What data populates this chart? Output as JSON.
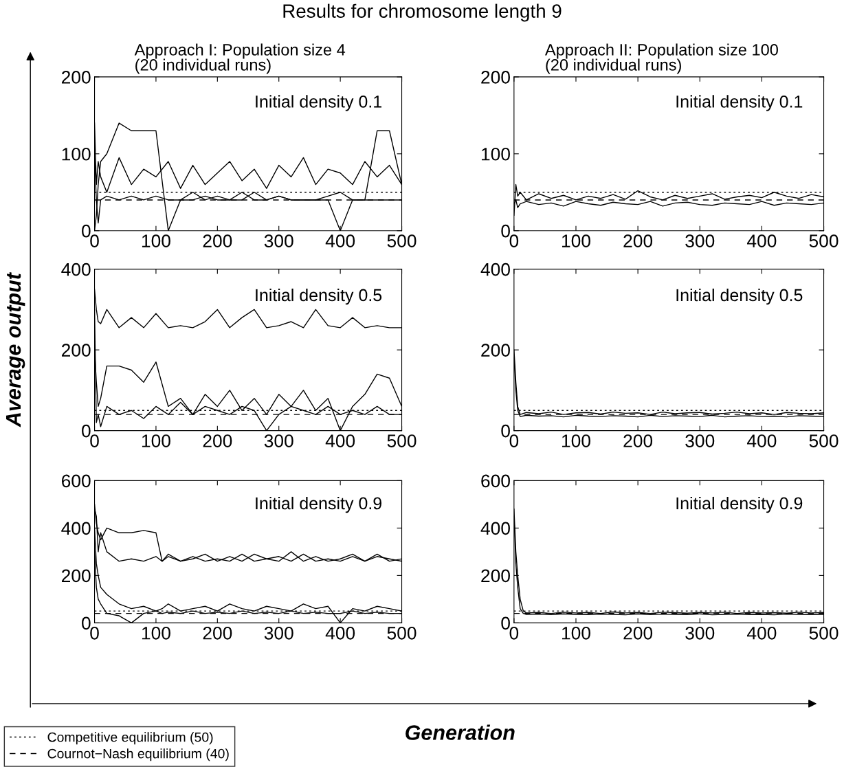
{
  "chart_data": [
    {
      "type": "line",
      "title": "Results for chromosome length 9",
      "subtitle": "Approach I: Population size 4\n(20 individual runs)",
      "ylabel": "Average output",
      "xlabel": "Generation",
      "annotations": [
        "Initial density 0.1"
      ],
      "xlim": [
        0,
        500
      ],
      "xticks": [
        0,
        100,
        200,
        300,
        400,
        500
      ],
      "ylim": [
        0,
        200
      ],
      "yticks": [
        0,
        100,
        200
      ],
      "legend": "bottom left",
      "grid": false,
      "x": [
        0,
        3,
        6,
        10,
        20,
        40,
        60,
        80,
        100,
        120,
        140,
        160,
        180,
        200,
        220,
        240,
        260,
        280,
        300,
        320,
        340,
        360,
        380,
        400,
        420,
        440,
        460,
        480,
        500
      ],
      "series": [
        {
          "color": "#000000",
          "values": [
            140,
            60,
            90,
            70,
            50,
            95,
            60,
            80,
            70,
            90,
            55,
            85,
            60,
            75,
            90,
            65,
            80,
            55,
            85,
            70,
            95,
            60,
            80,
            75,
            60,
            90,
            70,
            85,
            60
          ]
        },
        {
          "color": "#000000",
          "values": [
            0,
            20,
            60,
            90,
            100,
            140,
            130,
            130,
            130,
            0,
            40,
            40,
            45,
            40,
            40,
            50,
            40,
            40,
            45,
            40,
            40,
            40,
            40,
            0,
            40,
            40,
            130,
            130,
            60
          ]
        },
        {
          "color": "#000000",
          "values": [
            100,
            40,
            10,
            40,
            45,
            40,
            45,
            40,
            45,
            40,
            40,
            50,
            40,
            45,
            40,
            40,
            50,
            40,
            45,
            40,
            40,
            40,
            45,
            50,
            40,
            40,
            40,
            40,
            40
          ]
        }
      ],
      "ref_lines": [
        {
          "axis": "y",
          "value": 50,
          "label": "Competitive equilibrium (50)",
          "line_style": "dotted",
          "color": "#000000"
        },
        {
          "axis": "y",
          "value": 40,
          "label": "Cournot−Nash equilibrium (40)",
          "line_style": "dashed",
          "color": "#000000"
        }
      ]
    },
    {
      "type": "line",
      "subtitle": "Approach II: Population size 100\n(20 individual runs)",
      "annotations": [
        "Initial density 0.1"
      ],
      "xlim": [
        0,
        500
      ],
      "xticks": [
        0,
        100,
        200,
        300,
        400,
        500
      ],
      "ylim": [
        0,
        200
      ],
      "yticks": [
        0,
        100,
        200
      ],
      "x": [
        0,
        3,
        6,
        10,
        20,
        40,
        60,
        80,
        100,
        120,
        140,
        160,
        180,
        200,
        220,
        240,
        260,
        280,
        300,
        320,
        340,
        360,
        380,
        400,
        420,
        440,
        460,
        480,
        500
      ],
      "series": [
        {
          "color": "#000000",
          "values": [
            20,
            60,
            45,
            50,
            40,
            48,
            42,
            46,
            40,
            45,
            42,
            47,
            41,
            52,
            44,
            40,
            46,
            42,
            45,
            48,
            41,
            44,
            46,
            43,
            50,
            45,
            42,
            47,
            44
          ]
        },
        {
          "color": "#000000",
          "values": [
            35,
            40,
            30,
            35,
            38,
            34,
            36,
            32,
            38,
            35,
            33,
            37,
            35,
            34,
            38,
            32,
            36,
            37,
            34,
            33,
            36,
            35,
            34,
            38,
            33,
            36,
            35,
            34,
            36
          ]
        }
      ],
      "ref_lines": [
        {
          "axis": "y",
          "value": 50,
          "line_style": "dotted",
          "color": "#000000"
        },
        {
          "axis": "y",
          "value": 40,
          "line_style": "dashed",
          "color": "#000000"
        }
      ]
    },
    {
      "type": "line",
      "annotations": [
        "Initial density 0.5"
      ],
      "xlim": [
        0,
        500
      ],
      "xticks": [
        0,
        100,
        200,
        300,
        400,
        500
      ],
      "ylim": [
        0,
        400
      ],
      "yticks": [
        0,
        200,
        400
      ],
      "x": [
        0,
        3,
        6,
        10,
        20,
        40,
        60,
        80,
        100,
        120,
        140,
        160,
        180,
        200,
        220,
        240,
        260,
        280,
        300,
        320,
        340,
        360,
        380,
        400,
        420,
        440,
        460,
        480,
        500
      ],
      "series": [
        {
          "color": "#000000",
          "values": [
            350,
            300,
            270,
            265,
            300,
            255,
            280,
            255,
            290,
            255,
            260,
            255,
            270,
            300,
            255,
            280,
            300,
            255,
            260,
            270,
            255,
            300,
            260,
            255,
            280,
            255,
            260,
            255,
            255
          ]
        },
        {
          "color": "#000000",
          "values": [
            200,
            120,
            60,
            80,
            160,
            160,
            150,
            120,
            170,
            60,
            80,
            40,
            90,
            60,
            100,
            50,
            80,
            40,
            90,
            60,
            100,
            50,
            80,
            0,
            60,
            90,
            140,
            130,
            60
          ]
        },
        {
          "color": "#000000",
          "values": [
            300,
            20,
            40,
            10,
            60,
            40,
            50,
            30,
            60,
            40,
            70,
            40,
            60,
            50,
            40,
            60,
            50,
            0,
            40,
            60,
            50,
            40,
            60,
            40,
            50,
            40,
            60,
            40,
            40
          ]
        }
      ],
      "ref_lines": [
        {
          "axis": "y",
          "value": 50,
          "line_style": "dotted",
          "color": "#000000"
        },
        {
          "axis": "y",
          "value": 40,
          "line_style": "dashed",
          "color": "#000000"
        }
      ]
    },
    {
      "type": "line",
      "annotations": [
        "Initial density 0.5"
      ],
      "xlim": [
        0,
        500
      ],
      "xticks": [
        0,
        100,
        200,
        300,
        400,
        500
      ],
      "ylim": [
        0,
        400
      ],
      "yticks": [
        0,
        200,
        400
      ],
      "x": [
        0,
        3,
        6,
        10,
        20,
        40,
        60,
        80,
        100,
        120,
        140,
        160,
        180,
        200,
        220,
        240,
        260,
        280,
        300,
        320,
        340,
        360,
        380,
        400,
        420,
        440,
        460,
        480,
        500
      ],
      "series": [
        {
          "color": "#000000",
          "values": [
            200,
            120,
            60,
            40,
            45,
            42,
            46,
            40,
            44,
            45,
            41,
            46,
            43,
            44,
            40,
            46,
            42,
            44,
            45,
            41,
            43,
            46,
            42,
            44,
            40,
            45,
            43,
            42,
            44
          ]
        },
        {
          "color": "#000000",
          "values": [
            180,
            100,
            50,
            35,
            38,
            36,
            37,
            34,
            38,
            36,
            35,
            37,
            36,
            34,
            38,
            35,
            37,
            36,
            35,
            38,
            34,
            36,
            37,
            35,
            36,
            34,
            37,
            36,
            35
          ]
        }
      ],
      "ref_lines": [
        {
          "axis": "y",
          "value": 50,
          "line_style": "dotted",
          "color": "#000000"
        },
        {
          "axis": "y",
          "value": 40,
          "line_style": "dashed",
          "color": "#000000"
        }
      ]
    },
    {
      "type": "line",
      "annotations": [
        "Initial density 0.9"
      ],
      "xlim": [
        0,
        500
      ],
      "xticks": [
        0,
        100,
        200,
        300,
        400,
        500
      ],
      "ylim": [
        0,
        600
      ],
      "yticks": [
        0,
        200,
        400,
        600
      ],
      "x": [
        0,
        3,
        6,
        10,
        20,
        40,
        60,
        80,
        100,
        110,
        120,
        140,
        160,
        180,
        200,
        220,
        240,
        260,
        280,
        300,
        320,
        340,
        360,
        380,
        400,
        420,
        440,
        460,
        480,
        500
      ],
      "series": [
        {
          "color": "#000000",
          "values": [
            500,
            420,
            380,
            350,
            400,
            380,
            380,
            390,
            380,
            260,
            280,
            260,
            270,
            290,
            260,
            280,
            260,
            290,
            270,
            260,
            300,
            260,
            280,
            260,
            270,
            290,
            260,
            280,
            270,
            260
          ]
        },
        {
          "color": "#000000",
          "values": [
            480,
            450,
            300,
            380,
            300,
            260,
            270,
            260,
            280,
            260,
            290,
            260,
            280,
            260,
            270,
            260,
            290,
            260,
            270,
            280,
            260,
            290,
            260,
            270,
            260,
            280,
            260,
            290,
            260,
            270
          ]
        },
        {
          "color": "#000000",
          "values": [
            400,
            250,
            200,
            150,
            120,
            80,
            60,
            70,
            50,
            60,
            80,
            50,
            60,
            70,
            50,
            80,
            60,
            50,
            70,
            60,
            50,
            80,
            60,
            70,
            0,
            60,
            50,
            70,
            60,
            50
          ]
        },
        {
          "color": "#000000",
          "values": [
            300,
            150,
            100,
            80,
            40,
            30,
            0,
            40,
            50,
            40,
            45,
            40,
            50,
            40,
            45,
            40,
            50,
            40,
            45,
            40,
            50,
            40,
            45,
            40,
            40,
            50,
            40,
            45,
            40,
            40
          ]
        }
      ],
      "ref_lines": [
        {
          "axis": "y",
          "value": 50,
          "line_style": "dotted",
          "color": "#000000"
        },
        {
          "axis": "y",
          "value": 40,
          "line_style": "dashed",
          "color": "#000000"
        }
      ]
    },
    {
      "type": "line",
      "annotations": [
        "Initial density 0.9"
      ],
      "xlim": [
        0,
        500
      ],
      "xticks": [
        0,
        100,
        200,
        300,
        400,
        500
      ],
      "ylim": [
        0,
        600
      ],
      "yticks": [
        0,
        200,
        400,
        600
      ],
      "x": [
        0,
        3,
        6,
        10,
        15,
        20,
        40,
        60,
        80,
        100,
        120,
        140,
        160,
        180,
        200,
        220,
        240,
        260,
        280,
        300,
        320,
        340,
        360,
        380,
        400,
        420,
        440,
        460,
        480,
        500
      ],
      "series": [
        {
          "color": "#000000",
          "values": [
            480,
            300,
            200,
            100,
            50,
            42,
            44,
            40,
            45,
            42,
            44,
            40,
            46,
            42,
            44,
            40,
            45,
            43,
            41,
            44,
            42,
            45,
            40,
            44,
            42,
            43,
            41,
            45,
            42,
            44
          ]
        },
        {
          "color": "#000000",
          "values": [
            450,
            250,
            150,
            60,
            40,
            36,
            37,
            35,
            38,
            36,
            35,
            37,
            36,
            34,
            38,
            35,
            37,
            36,
            35,
            38,
            34,
            36,
            37,
            35,
            36,
            34,
            37,
            36,
            35,
            36
          ]
        }
      ],
      "ref_lines": [
        {
          "axis": "y",
          "value": 50,
          "line_style": "dotted",
          "color": "#000000"
        },
        {
          "axis": "y",
          "value": 40,
          "line_style": "dashed",
          "color": "#000000"
        }
      ]
    }
  ]
}
